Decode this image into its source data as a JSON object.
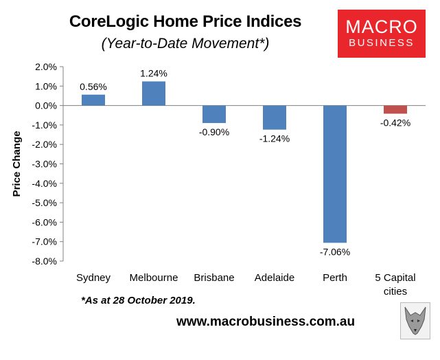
{
  "header": {
    "title": "CoreLogic Home Price Indices",
    "subtitle": "(Year-to-Date Movement*)"
  },
  "logo": {
    "line1": "MACRO",
    "line2": "BUSINESS",
    "color": "#e8262c"
  },
  "footer": {
    "note": "*As at 28 October 2019.",
    "url": "www.macrobusiness.com.au",
    "mascot_icon": "wolf-icon"
  },
  "chart_data": {
    "type": "bar",
    "title": "CoreLogic Home Price Indices",
    "subtitle": "(Year-to-Date Movement*)",
    "ylabel": "Price Change",
    "xlabel": "",
    "categories": [
      "Sydney",
      "Melbourne",
      "Brisbane",
      "Adelaide",
      "Perth",
      "5 Capital cities"
    ],
    "values": [
      0.56,
      1.24,
      -0.9,
      -1.24,
      -7.06,
      -0.42
    ],
    "data_labels": [
      "0.56%",
      "1.24%",
      "-0.90%",
      "-1.24%",
      "-7.06%",
      "-0.42%"
    ],
    "bar_colors": [
      "#4f81bd",
      "#4f81bd",
      "#4f81bd",
      "#4f81bd",
      "#4f81bd",
      "#c0504d"
    ],
    "ylim": [
      -8,
      2
    ],
    "yticks": [
      2,
      1,
      0,
      -1,
      -2,
      -3,
      -4,
      -5,
      -6,
      -7,
      -8
    ],
    "ytick_labels": [
      "2.0%",
      "1.0%",
      "0.0%",
      "-1.0%",
      "-2.0%",
      "-3.0%",
      "-4.0%",
      "-5.0%",
      "-6.0%",
      "-7.0%",
      "-8.0%"
    ],
    "grid": false,
    "legend": "none"
  }
}
